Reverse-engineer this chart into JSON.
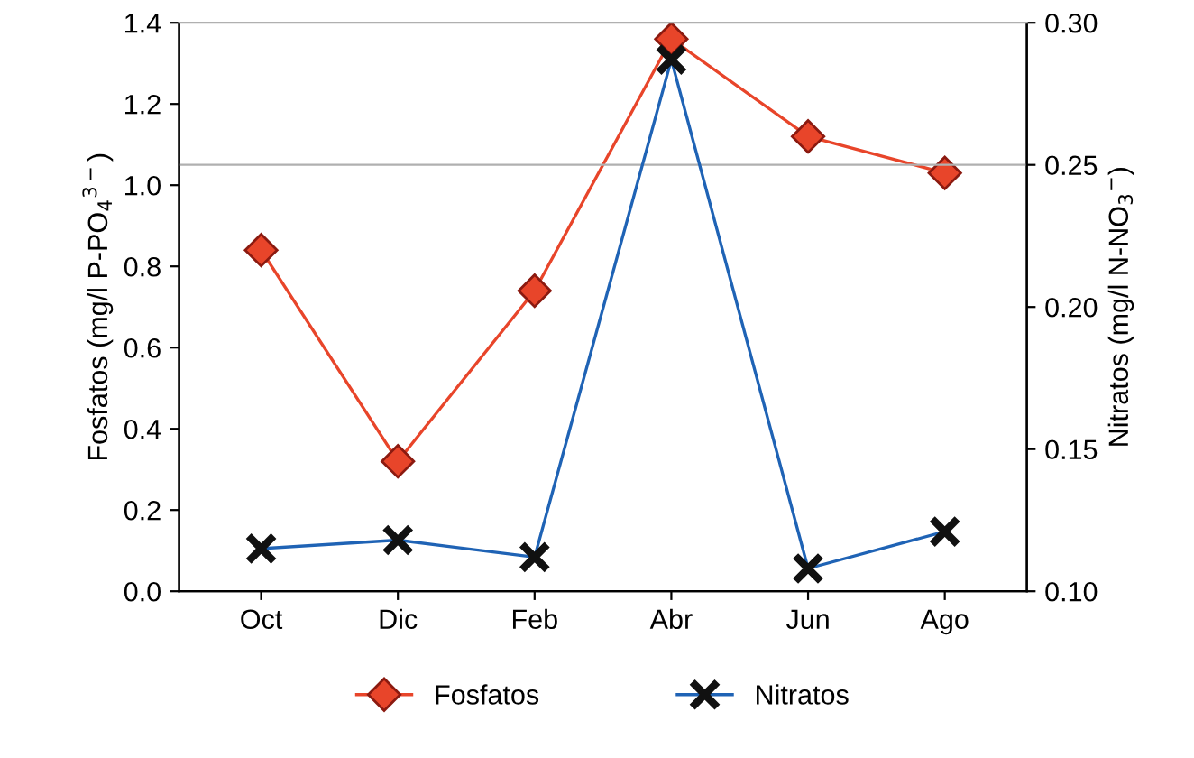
{
  "chart_data": {
    "type": "line",
    "ylabel": "Fosfatos (mg/l P-PO$_{4}$$^{3−}$)",
    "y2label": "Nitratos (mg/l N-NO$_{3}$$^{−}$)",
    "categories": [
      "Oct",
      "Dic",
      "Feb",
      "Abr",
      "Jun",
      "Ago"
    ],
    "series": [
      {
        "name": "Fosfatos",
        "color": "#e8452a",
        "marker": "diamond",
        "values": [
          0.84,
          0.32,
          0.74,
          1.36,
          1.12,
          1.03
        ]
      },
      {
        "name": "Nitratos",
        "color": "#1f63b5",
        "marker": "cross",
        "axis": "y2",
        "values": [
          0.115,
          0.118,
          0.112,
          0.287,
          0.108,
          0.121
        ]
      }
    ],
    "ylim": [
      0,
      1.4
    ],
    "yticks": [
      {
        "value": 0,
        "label": "0.0"
      },
      0.2,
      0.4,
      0.6,
      0.8,
      {
        "value": 1,
        "label": "1.0"
      },
      1.2,
      1.4
    ],
    "y2lim": [
      0.1,
      0.3
    ],
    "y2ticks": [
      {
        "value": 0.1,
        "label": "0.10"
      },
      0.15,
      {
        "value": 0.2,
        "label": "0.20"
      },
      0.25,
      {
        "value": 0.3,
        "label": "0.30"
      }
    ],
    "ref_lines": [
      {
        "axis": "y2",
        "value": 0.25,
        "color": "#b0b0b0"
      }
    ],
    "grid": false,
    "legend": "bottom"
  }
}
